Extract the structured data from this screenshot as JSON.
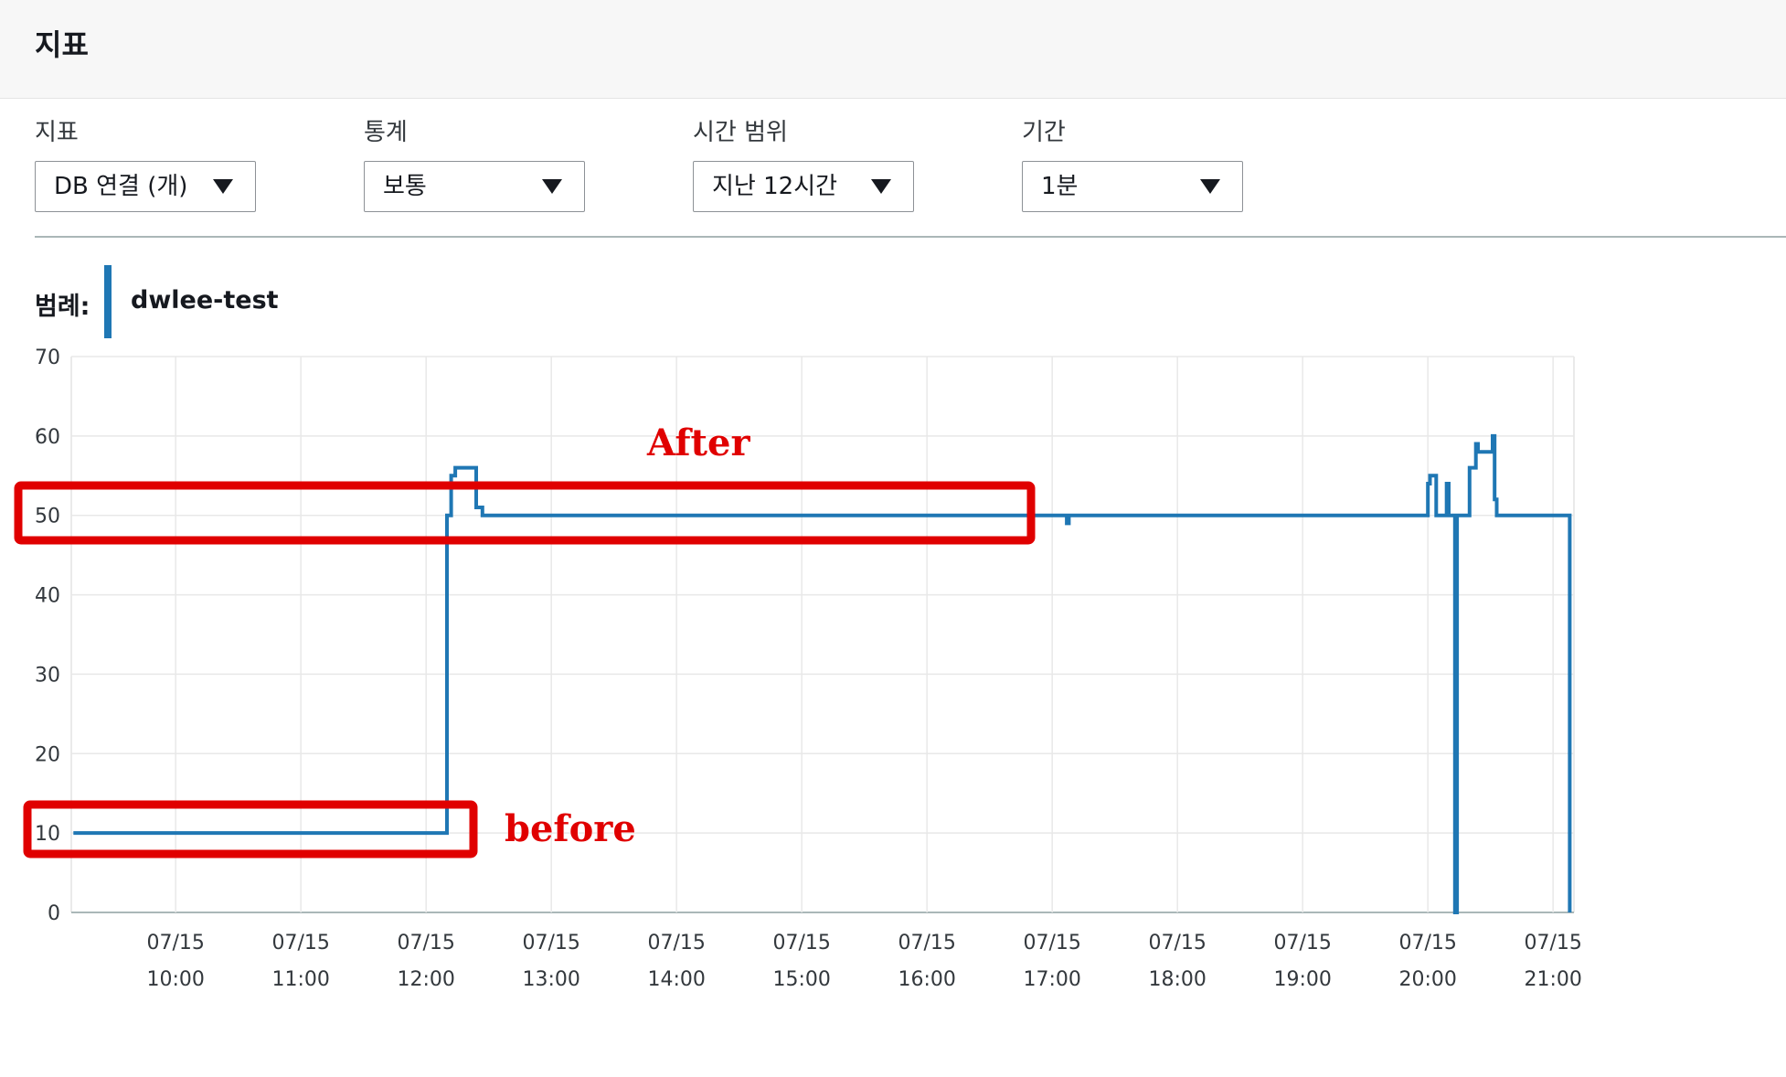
{
  "header": {
    "title": "지표"
  },
  "controls": [
    {
      "label": "지표",
      "value": "DB 연결 (개)"
    },
    {
      "label": "통계",
      "value": "보통"
    },
    {
      "label": "시간 범위",
      "value": "지난 12시간"
    },
    {
      "label": "기간",
      "value": "1분"
    }
  ],
  "legend": {
    "label": "범례:",
    "series": "dwlee-test",
    "color": "#1f77b4"
  },
  "chart_data": {
    "type": "line",
    "ylim": [
      0,
      70
    ],
    "yticks": [
      0,
      10,
      20,
      30,
      40,
      50,
      60,
      70
    ],
    "xlim": [
      "09:10",
      "21:10"
    ],
    "xticks": [
      {
        "date": "07/15",
        "time": "10:00"
      },
      {
        "date": "07/15",
        "time": "11:00"
      },
      {
        "date": "07/15",
        "time": "12:00"
      },
      {
        "date": "07/15",
        "time": "13:00"
      },
      {
        "date": "07/15",
        "time": "14:00"
      },
      {
        "date": "07/15",
        "time": "15:00"
      },
      {
        "date": "07/15",
        "time": "16:00"
      },
      {
        "date": "07/15",
        "time": "17:00"
      },
      {
        "date": "07/15",
        "time": "18:00"
      },
      {
        "date": "07/15",
        "time": "19:00"
      },
      {
        "date": "07/15",
        "time": "20:00"
      },
      {
        "date": "07/15",
        "time": "21:00"
      }
    ],
    "grid": true,
    "series": [
      {
        "name": "dwlee-test",
        "color": "#1f77b4",
        "points": [
          [
            "09:11",
            10
          ],
          [
            "12:10",
            10
          ],
          [
            "12:10",
            50
          ],
          [
            "12:12",
            50
          ],
          [
            "12:12",
            55
          ],
          [
            "12:14",
            55
          ],
          [
            "12:14",
            56
          ],
          [
            "12:24",
            56
          ],
          [
            "12:24",
            51
          ],
          [
            "12:27",
            51
          ],
          [
            "12:27",
            50
          ],
          [
            "17:07",
            50
          ],
          [
            "17:07",
            49
          ],
          [
            "17:08",
            49
          ],
          [
            "17:08",
            50
          ],
          [
            "20:00",
            50
          ],
          [
            "20:00",
            54
          ],
          [
            "20:01",
            54
          ],
          [
            "20:01",
            55
          ],
          [
            "20:04",
            55
          ],
          [
            "20:04",
            50
          ],
          [
            "20:09",
            50
          ],
          [
            "20:09",
            54
          ],
          [
            "20:10",
            54
          ],
          [
            "20:10",
            50
          ],
          [
            "20:13",
            50
          ],
          [
            "20:13",
            0
          ],
          [
            "20:14",
            0
          ],
          [
            "20:14",
            50
          ],
          [
            "20:20",
            50
          ],
          [
            "20:20",
            56
          ],
          [
            "20:23",
            56
          ],
          [
            "20:23",
            59
          ],
          [
            "20:24",
            59
          ],
          [
            "20:24",
            58
          ],
          [
            "20:31",
            58
          ],
          [
            "20:31",
            60
          ],
          [
            "20:32",
            60
          ],
          [
            "20:32",
            52
          ],
          [
            "20:33",
            52
          ],
          [
            "20:33",
            50
          ],
          [
            "21:08",
            50
          ],
          [
            "21:08",
            0
          ]
        ]
      }
    ]
  },
  "annotations": {
    "after": "After",
    "before": "before",
    "color": "#e00000"
  }
}
